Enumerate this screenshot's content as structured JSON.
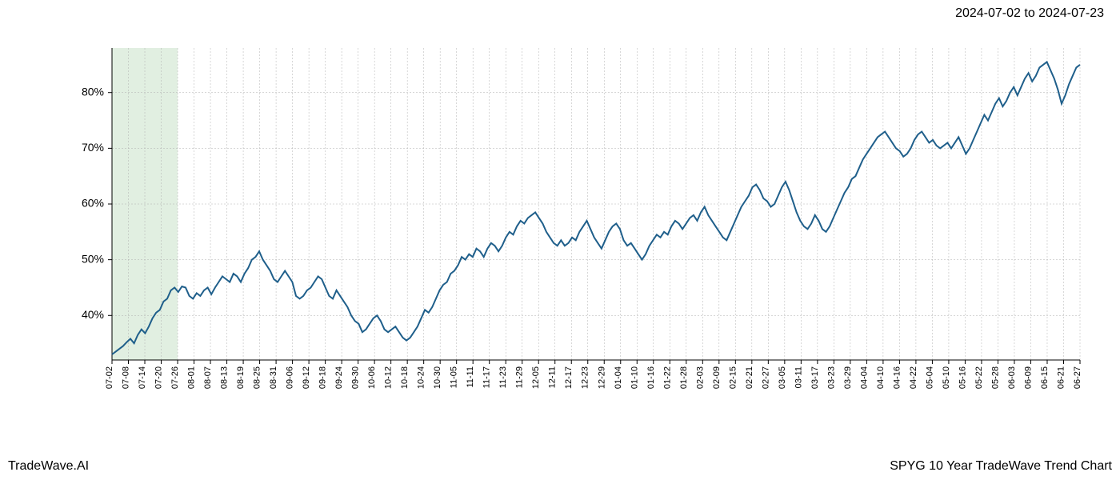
{
  "date_range": "2024-07-02 to 2024-07-23",
  "footer_left": "TradeWave.AI",
  "footer_right": "SPYG 10 Year TradeWave Trend Chart",
  "chart": {
    "type": "line",
    "background_color": "#ffffff",
    "line_color": "#1f5f8b",
    "line_width": 2,
    "grid_color": "#b0b0b0",
    "axis_color": "#000000",
    "highlight_band_color": "#d4e8d4",
    "highlight_band_start_index": 0,
    "highlight_band_end_index": 4,
    "ylim": [
      32,
      88
    ],
    "yticks": [
      40,
      50,
      60,
      70,
      80
    ],
    "ytick_labels": [
      "40%",
      "50%",
      "60%",
      "70%",
      "80%"
    ],
    "xtick_labels": [
      "07-02",
      "07-08",
      "07-14",
      "07-20",
      "07-26",
      "08-01",
      "08-07",
      "08-13",
      "08-19",
      "08-25",
      "08-31",
      "09-06",
      "09-12",
      "09-18",
      "09-24",
      "09-30",
      "10-06",
      "10-12",
      "10-18",
      "10-24",
      "10-30",
      "11-05",
      "11-11",
      "11-17",
      "11-23",
      "11-29",
      "12-05",
      "12-11",
      "12-17",
      "12-23",
      "12-29",
      "01-04",
      "01-10",
      "01-16",
      "01-22",
      "01-28",
      "02-03",
      "02-09",
      "02-15",
      "02-21",
      "02-27",
      "03-05",
      "03-11",
      "03-17",
      "03-23",
      "03-29",
      "04-04",
      "04-10",
      "04-16",
      "04-22",
      "05-04",
      "05-10",
      "05-16",
      "05-22",
      "05-28",
      "06-03",
      "06-09",
      "06-15",
      "06-21",
      "06-27"
    ],
    "label_fontsize": 14,
    "xlabel_fontsize": 11,
    "series": [
      33.0,
      33.5,
      34.0,
      34.5,
      35.2,
      35.8,
      35.0,
      36.5,
      37.5,
      36.8,
      38.0,
      39.5,
      40.5,
      41.0,
      42.5,
      43.0,
      44.5,
      45.0,
      44.2,
      45.2,
      45.0,
      43.5,
      43.0,
      44.0,
      43.5,
      44.5,
      45.0,
      43.8,
      45.0,
      46.0,
      47.0,
      46.5,
      46.0,
      47.5,
      47.0,
      46.0,
      47.5,
      48.5,
      50.0,
      50.5,
      51.5,
      50.0,
      49.0,
      48.0,
      46.5,
      46.0,
      47.0,
      48.0,
      47.0,
      46.0,
      43.5,
      43.0,
      43.5,
      44.5,
      45.0,
      46.0,
      47.0,
      46.5,
      45.0,
      43.5,
      43.0,
      44.5,
      43.5,
      42.5,
      41.5,
      40.0,
      39.0,
      38.5,
      37.0,
      37.5,
      38.5,
      39.5,
      40.0,
      39.0,
      37.5,
      37.0,
      37.5,
      38.0,
      37.0,
      36.0,
      35.5,
      36.0,
      37.0,
      38.0,
      39.5,
      41.0,
      40.5,
      41.5,
      43.0,
      44.5,
      45.5,
      46.0,
      47.5,
      48.0,
      49.0,
      50.5,
      50.0,
      51.0,
      50.5,
      52.0,
      51.5,
      50.5,
      52.0,
      53.0,
      52.5,
      51.5,
      52.5,
      54.0,
      55.0,
      54.5,
      56.0,
      57.0,
      56.5,
      57.5,
      58.0,
      58.5,
      57.5,
      56.5,
      55.0,
      54.0,
      53.0,
      52.5,
      53.5,
      52.5,
      53.0,
      54.0,
      53.5,
      55.0,
      56.0,
      57.0,
      55.5,
      54.0,
      53.0,
      52.0,
      53.5,
      55.0,
      56.0,
      56.5,
      55.5,
      53.5,
      52.5,
      53.0,
      52.0,
      51.0,
      50.0,
      51.0,
      52.5,
      53.5,
      54.5,
      54.0,
      55.0,
      54.5,
      56.0,
      57.0,
      56.5,
      55.5,
      56.5,
      57.5,
      58.0,
      57.0,
      58.5,
      59.5,
      58.0,
      57.0,
      56.0,
      55.0,
      54.0,
      53.5,
      55.0,
      56.5,
      58.0,
      59.5,
      60.5,
      61.5,
      63.0,
      63.5,
      62.5,
      61.0,
      60.5,
      59.5,
      60.0,
      61.5,
      63.0,
      64.0,
      62.5,
      60.5,
      58.5,
      57.0,
      56.0,
      55.5,
      56.5,
      58.0,
      57.0,
      55.5,
      55.0,
      56.0,
      57.5,
      59.0,
      60.5,
      62.0,
      63.0,
      64.5,
      65.0,
      66.5,
      68.0,
      69.0,
      70.0,
      71.0,
      72.0,
      72.5,
      73.0,
      72.0,
      71.0,
      70.0,
      69.5,
      68.5,
      69.0,
      70.0,
      71.5,
      72.5,
      73.0,
      72.0,
      71.0,
      71.5,
      70.5,
      70.0,
      70.5,
      71.0,
      70.0,
      71.0,
      72.0,
      70.5,
      69.0,
      70.0,
      71.5,
      73.0,
      74.5,
      76.0,
      75.0,
      76.5,
      78.0,
      79.0,
      77.5,
      78.5,
      80.0,
      81.0,
      79.5,
      81.0,
      82.5,
      83.5,
      82.0,
      83.0,
      84.5,
      85.0,
      85.5,
      84.0,
      82.5,
      80.5,
      78.0,
      79.5,
      81.5,
      83.0,
      84.5,
      85.0
    ]
  }
}
